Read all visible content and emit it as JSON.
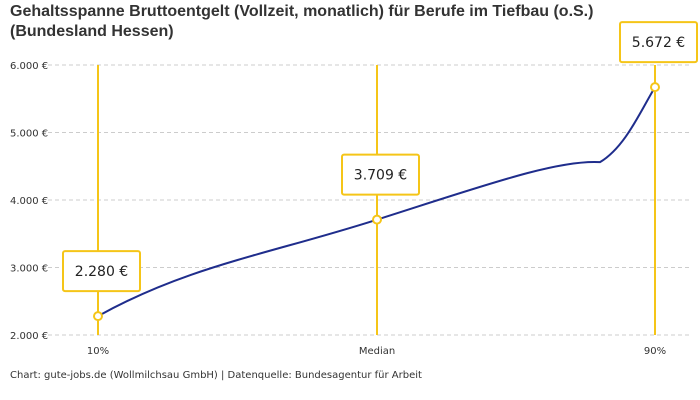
{
  "chart_data": {
    "type": "line",
    "title": "Gehaltsspanne Bruttoentgelt (Vollzeit, monatlich) für Berufe im Tiefbau (o.S.) (Bundesland Hessen)",
    "categories": [
      "10%",
      "Median",
      "90%"
    ],
    "values": [
      2280,
      3709,
      5672
    ],
    "value_labels": [
      "2.280 €",
      "3.709 €",
      "5.672 €"
    ],
    "ylim": [
      2000,
      6000
    ],
    "yticks": [
      2000,
      3000,
      4000,
      5000,
      6000
    ],
    "ytick_labels": [
      "2.000 €",
      "3.000 €",
      "4.000 €",
      "5.000 €",
      "6.000 €"
    ],
    "grid": true,
    "colors": {
      "line": "#1f2d8c",
      "marker": "#f5c518",
      "grid": "#cccccc"
    }
  },
  "credit": "Chart: gute-jobs.de (Wollmilchsau GmbH) | Datenquelle: Bundesagentur für Arbeit"
}
